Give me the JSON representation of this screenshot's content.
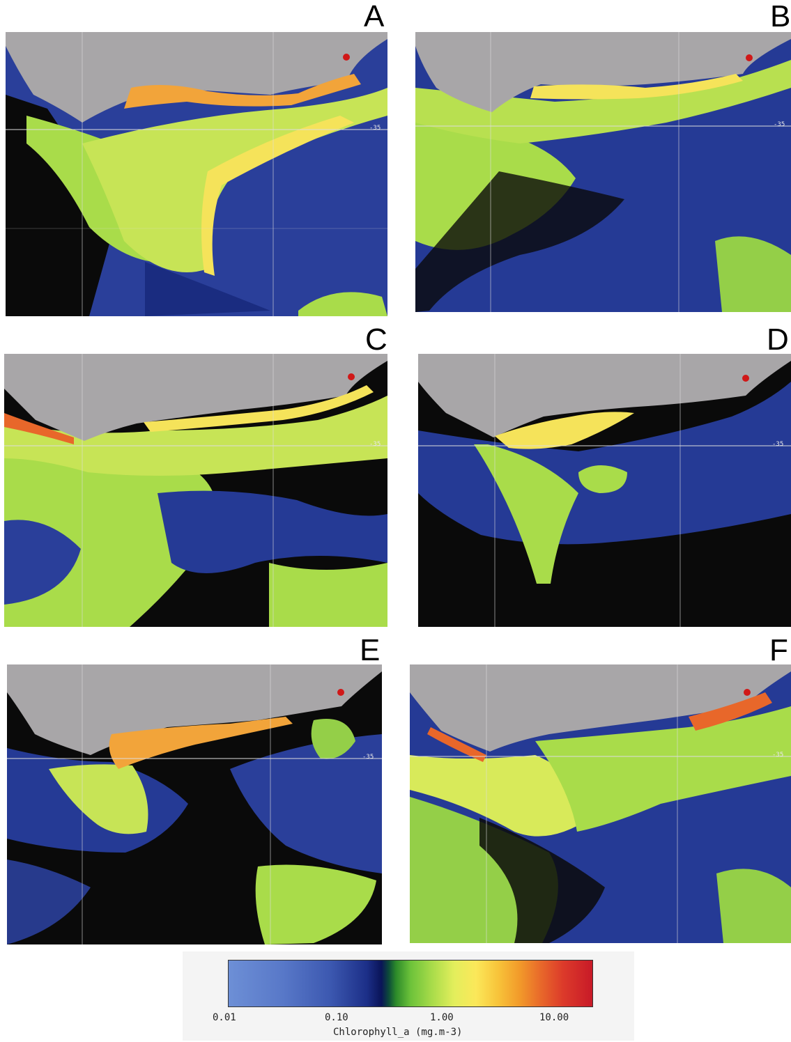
{
  "panels": [
    {
      "letter": "A",
      "lat_label": "-35"
    },
    {
      "letter": "B",
      "lat_label": "-35"
    },
    {
      "letter": "C",
      "lat_label": "-35"
    },
    {
      "letter": "D",
      "lat_label": "-35"
    },
    {
      "letter": "E",
      "lat_label": "-35"
    },
    {
      "letter": "F",
      "lat_label": "-35"
    }
  ],
  "colorbar": {
    "ticks": [
      "0.01",
      "0.10",
      "1.00",
      "10.00"
    ],
    "title": "Chlorophyll_a (mg.m-3)"
  },
  "colors": {
    "land": "#a8a6a8",
    "no_data": "#0a0a0a",
    "low": "#3c58b0",
    "mid": "#a9dc4a",
    "high": "#f29a2a",
    "max": "#c81a28",
    "marker": "#d01818"
  },
  "marker_icon": "red-dot-icon"
}
